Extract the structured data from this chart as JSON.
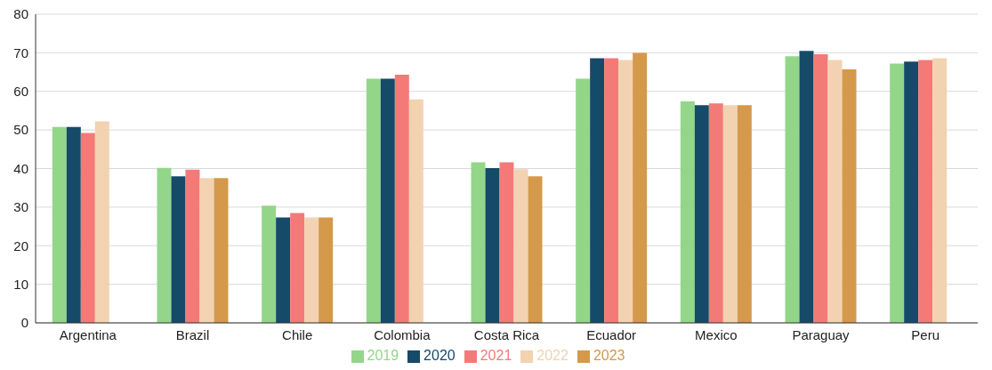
{
  "chart_data": {
    "type": "bar",
    "categories": [
      "Argentina",
      "Brazil",
      "Chile",
      "Colombia",
      "Costa Rica",
      "Ecuador",
      "Mexico",
      "Paraguay",
      "Peru"
    ],
    "series": [
      {
        "name": "2019",
        "color": "#93d68a",
        "values": [
          50.8,
          40.2,
          30.4,
          63.3,
          41.6,
          63.3,
          57.4,
          69.1,
          67.2
        ]
      },
      {
        "name": "2020",
        "color": "#154a68",
        "values": [
          50.8,
          38,
          27.3,
          63.3,
          40.1,
          68.6,
          56.4,
          70.5,
          67.7
        ]
      },
      {
        "name": "2021",
        "color": "#f47a78",
        "values": [
          49.2,
          39.7,
          28.5,
          64.3,
          41.6,
          68.6,
          56.9,
          69.6,
          68.1
        ]
      },
      {
        "name": "2022",
        "color": "#f2d2b1",
        "values": [
          52.2,
          37.5,
          27.3,
          57.9,
          39.8,
          68.1,
          56.4,
          68.1,
          68.6
        ]
      },
      {
        "name": "2023",
        "color": "#d4994a",
        "values": [
          null,
          37.5,
          27.3,
          null,
          38,
          70,
          56.4,
          65.7,
          null
        ]
      }
    ],
    "ylim": [
      0,
      80
    ],
    "yticks": [
      0,
      10,
      20,
      30,
      40,
      50,
      60,
      70,
      80
    ],
    "grid": "y",
    "legend": "bottom"
  }
}
